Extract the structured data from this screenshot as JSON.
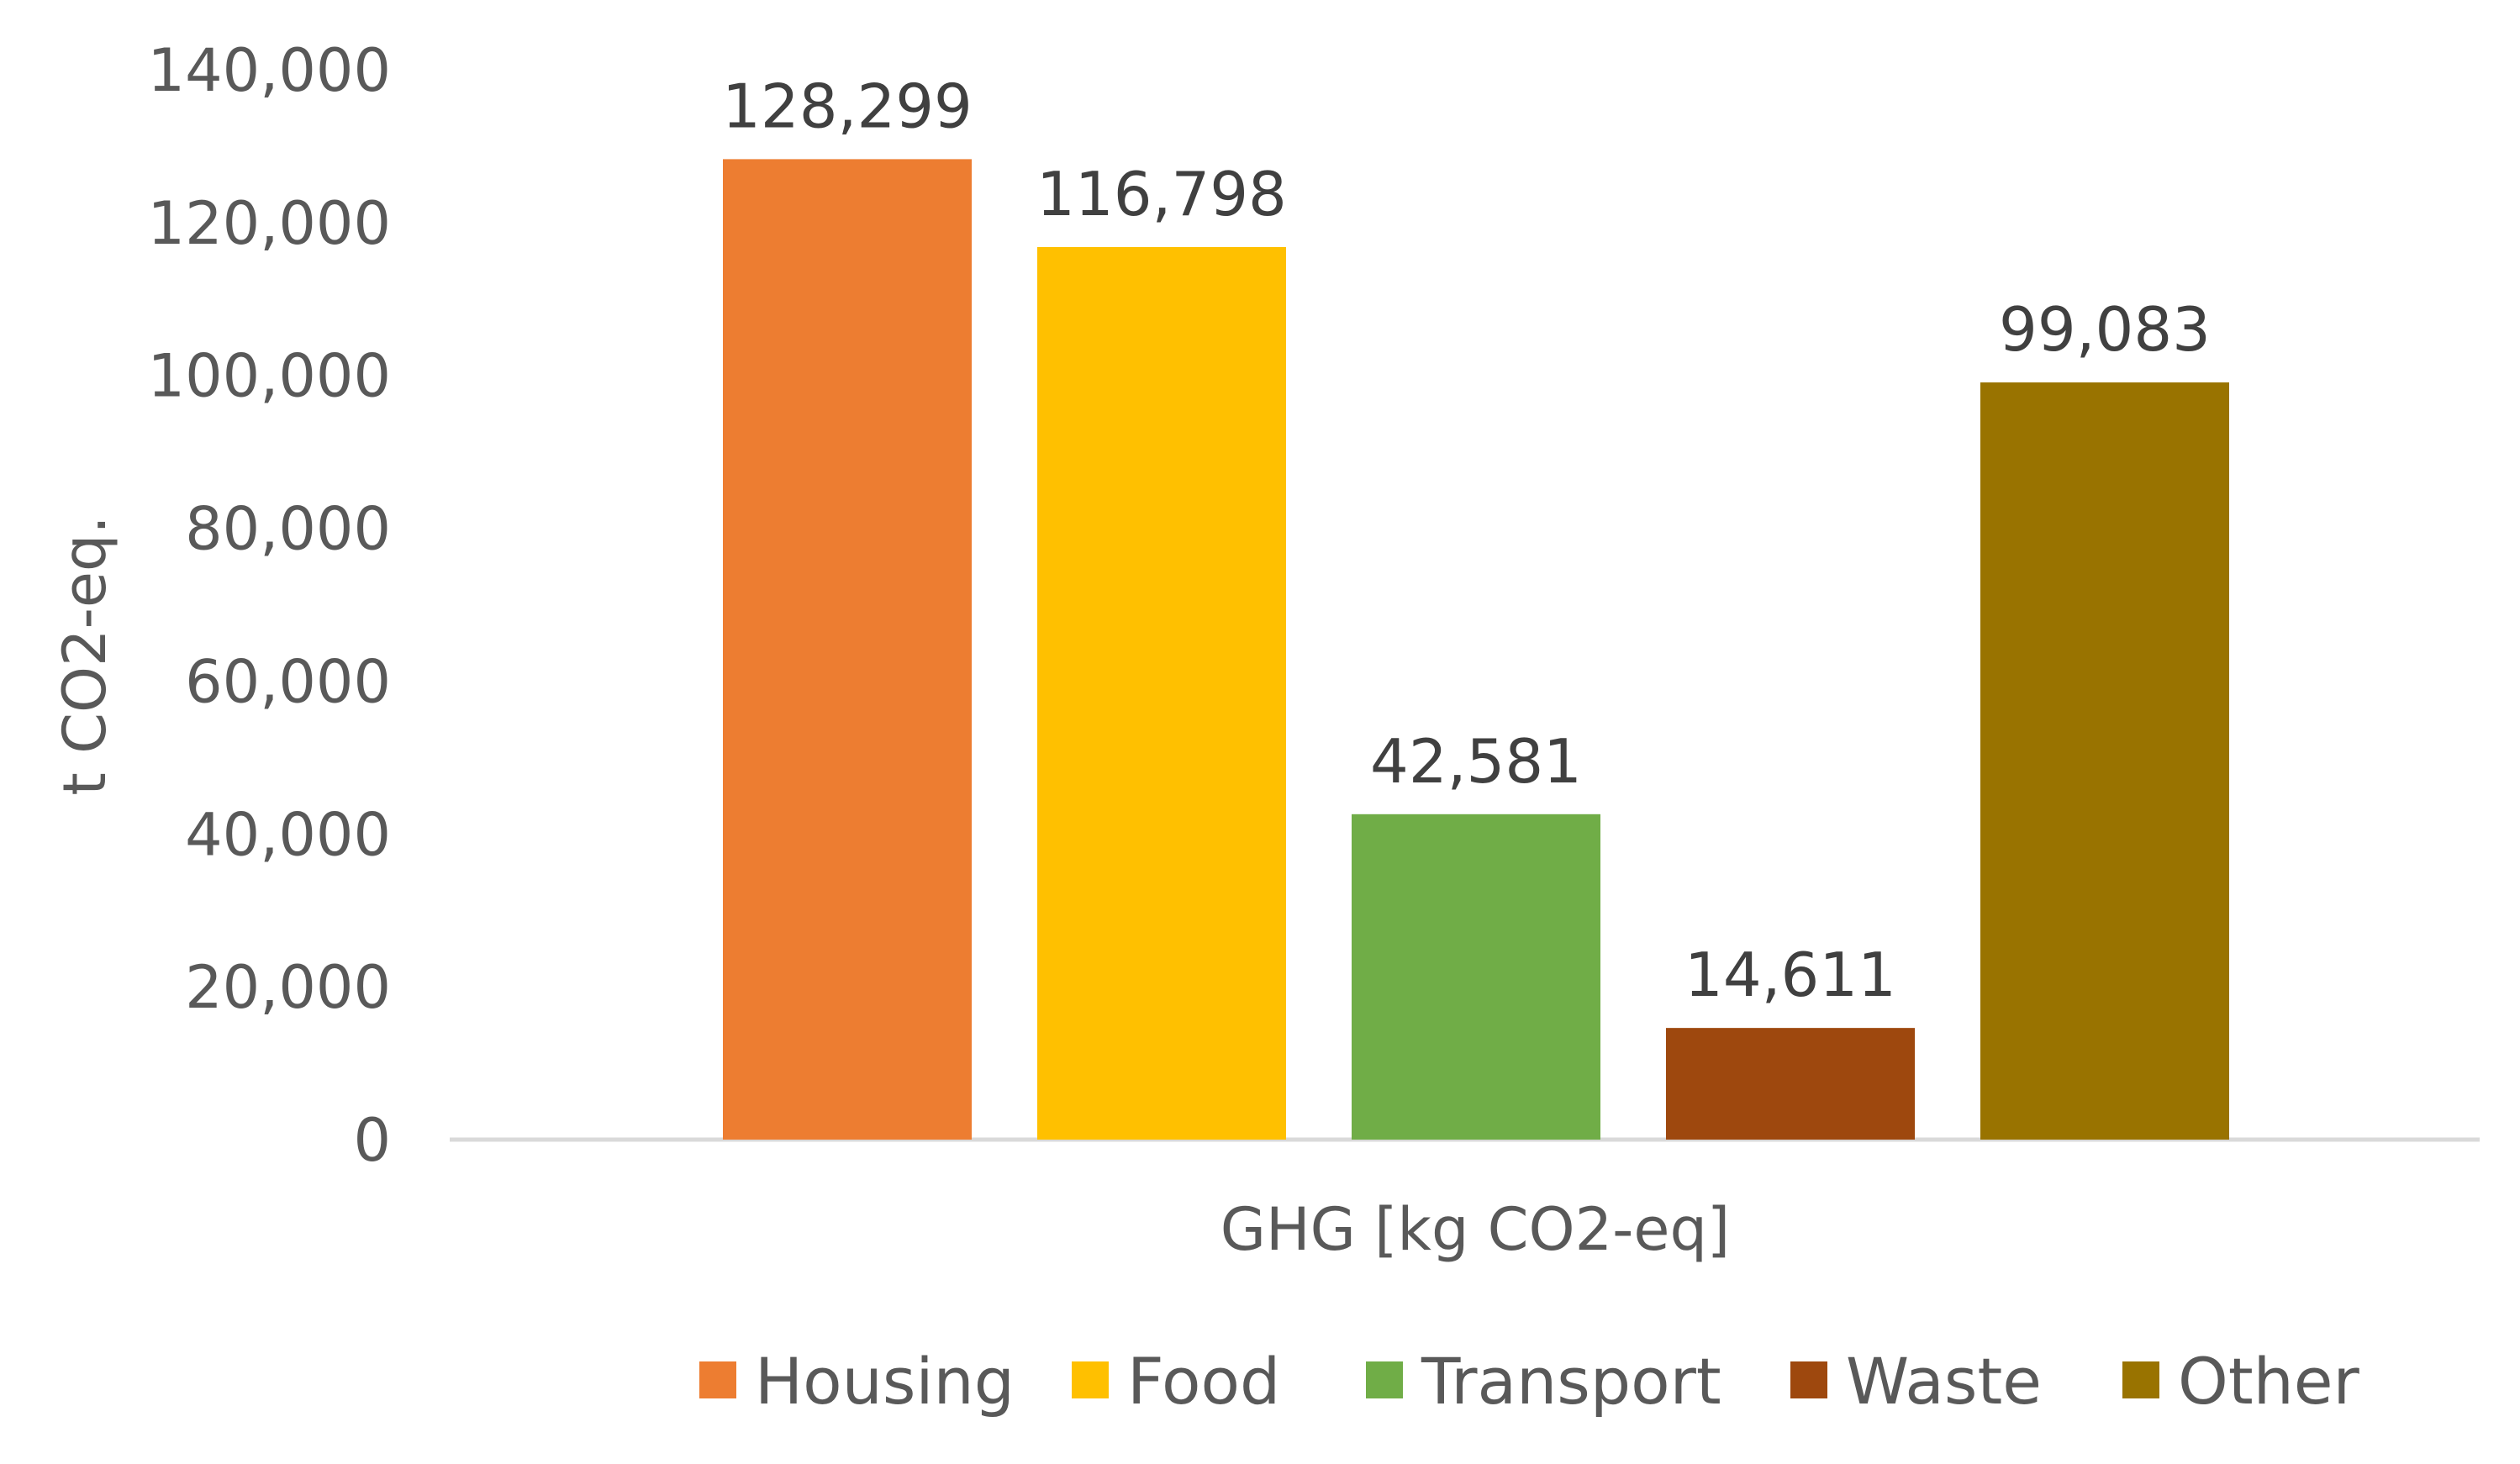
{
  "chart_data": {
    "type": "bar",
    "title": "",
    "ylabel": "t CO2-eq.",
    "xlabel": "GHG [kg CO2-eq]",
    "ylim": [
      0,
      140000
    ],
    "yticks": [
      0,
      20000,
      40000,
      60000,
      80000,
      100000,
      120000,
      140000
    ],
    "ytick_labels": [
      "0",
      "20,000",
      "40,000",
      "60,000",
      "80,000",
      "100,000",
      "120,000",
      "140,000"
    ],
    "categories": [
      "GHG [kg CO2-eq]"
    ],
    "series": [
      {
        "name": "Housing",
        "values": [
          128299
        ],
        "label": "128,299",
        "color": "#ED7D31"
      },
      {
        "name": "Food",
        "values": [
          116798
        ],
        "label": "116,798",
        "color": "#FFC000"
      },
      {
        "name": "Transport",
        "values": [
          42581
        ],
        "label": "42,581",
        "color": "#70AD47"
      },
      {
        "name": "Waste",
        "values": [
          14611
        ],
        "label": "14,611",
        "color": "#9E480E"
      },
      {
        "name": "Other",
        "values": [
          99083
        ],
        "label": "99,083",
        "color": "#997300"
      }
    ],
    "legend_position": "bottom",
    "grid": false
  }
}
